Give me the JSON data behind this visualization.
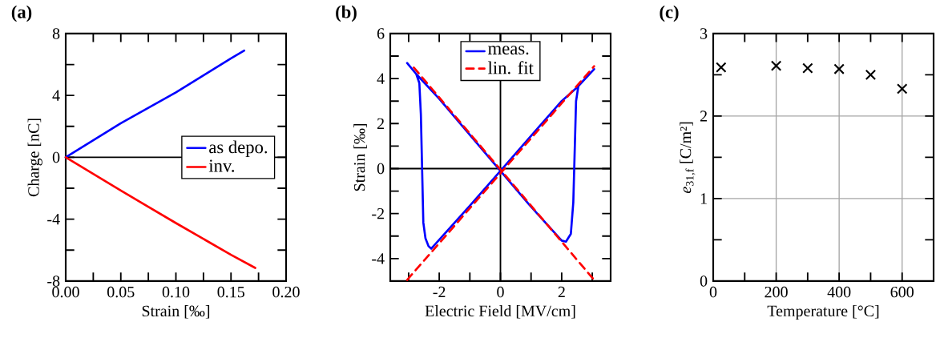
{
  "chart_data": [
    {
      "type": "line",
      "title": "(a)",
      "xlabel": "Strain [‰]",
      "ylabel": "Charge [nC]",
      "xlim": [
        0,
        0.2
      ],
      "ylim": [
        -8,
        8
      ],
      "xticks": [
        {
          "value": 0,
          "label": "0.00"
        },
        {
          "value": 0.025,
          "label": null
        },
        {
          "value": 0.05,
          "label": "0.05"
        },
        {
          "value": 0.075,
          "label": null
        },
        {
          "value": 0.1,
          "label": "0.10"
        },
        {
          "value": 0.125,
          "label": null
        },
        {
          "value": 0.15,
          "label": "0.15"
        },
        {
          "value": 0.175,
          "label": null
        },
        {
          "value": 0.2,
          "label": "0.20"
        }
      ],
      "yticks": [
        -8,
        {
          "value": -6,
          "label": null
        },
        -4,
        {
          "value": -2,
          "label": null
        },
        0,
        {
          "value": 2,
          "label": null
        },
        4,
        {
          "value": 6,
          "label": null
        },
        8
      ],
      "legend": "right",
      "ref_lines": [
        {
          "axis": "y",
          "value": 0
        }
      ],
      "series": [
        {
          "name": "as depo.",
          "color": "#0000ff",
          "x": [
            0,
            0.025,
            0.05,
            0.075,
            0.1,
            0.125,
            0.15,
            0.162
          ],
          "values": [
            0,
            1.1,
            2.2,
            3.2,
            4.2,
            5.3,
            6.4,
            6.9
          ]
        },
        {
          "name": "inv.",
          "color": "#ff0000",
          "x": [
            0,
            0.05,
            0.1,
            0.15,
            0.172
          ],
          "values": [
            0,
            -2.15,
            -4.25,
            -6.3,
            -7.15
          ]
        }
      ]
    },
    {
      "type": "line",
      "title": "(b)",
      "xlabel": "Electric Field [MV/cm]",
      "ylabel": "Strain [‰]",
      "xlim": [
        -3.6,
        3.6
      ],
      "ylim": [
        -5,
        6
      ],
      "xticks": [
        {
          "value": -3,
          "label": null
        },
        -2,
        {
          "value": -1,
          "label": null
        },
        0,
        {
          "value": 1,
          "label": null
        },
        2,
        {
          "value": 3,
          "label": null
        }
      ],
      "yticks": [
        -4,
        {
          "value": -3,
          "label": null
        },
        -2,
        {
          "value": -1,
          "label": null
        },
        0,
        {
          "value": 1,
          "label": null
        },
        2,
        {
          "value": 3,
          "label": null
        },
        4,
        {
          "value": 5,
          "label": null
        },
        6
      ],
      "legend": "top",
      "ref_lines": [
        {
          "axis": "x",
          "value": 0
        },
        {
          "axis": "y",
          "value": 0
        }
      ],
      "series": [
        {
          "name": "meas.",
          "color": "#0000ff",
          "line_style": "solid",
          "x": [
            -3.05,
            -2.75,
            -2.65,
            -2.6,
            -2.56,
            -2.52,
            -2.45,
            -2.35,
            -2.26,
            -1,
            0,
            1,
            2,
            2.5,
            3.06,
            2.7,
            2.55,
            2.47,
            2.42,
            2.38,
            2.3,
            2.14,
            2,
            1,
            0,
            -2,
            -2.75
          ],
          "values": [
            4.69,
            4.2,
            3.8,
            2.4,
            0,
            -2.4,
            -3.1,
            -3.45,
            -3.56,
            -1.65,
            -0.1,
            1.45,
            3.0,
            3.6,
            4.42,
            3.9,
            3.7,
            3.0,
            0.5,
            -1.5,
            -2.9,
            -3.25,
            -3.2,
            -1.7,
            -0.1,
            3.1,
            4.2
          ]
        },
        {
          "name": "lin. fit",
          "color": "#ff0000",
          "line_style": "dashed",
          "x": [
            -3.05,
            3.06,
            0,
            -2.83,
            3.06
          ],
          "values": [
            -4.95,
            4.55,
            null,
            4.49,
            -4.95
          ]
        }
      ]
    },
    {
      "type": "scatter",
      "title": "(c)",
      "xlabel": "Temperature [°C]",
      "ylabel": "*e*$_{31,f}$ [C/m²]",
      "xlim": [
        0,
        700
      ],
      "ylim": [
        0,
        3
      ],
      "xticks": [
        0,
        {
          "value": 100,
          "label": null
        },
        200,
        {
          "value": 300,
          "label": null
        },
        400,
        {
          "value": 500,
          "label": null
        },
        600
      ],
      "yticks": [
        0,
        {
          "value": 0.5,
          "label": null
        },
        1,
        {
          "value": 1.5,
          "label": null
        },
        2,
        {
          "value": 2.5,
          "label": null
        },
        3
      ],
      "grid": true,
      "marker": "cross",
      "color": "#000000",
      "x": [
        25,
        200,
        300,
        400,
        500,
        600
      ],
      "values": [
        2.59,
        2.61,
        2.58,
        2.57,
        2.5,
        2.33
      ]
    }
  ]
}
